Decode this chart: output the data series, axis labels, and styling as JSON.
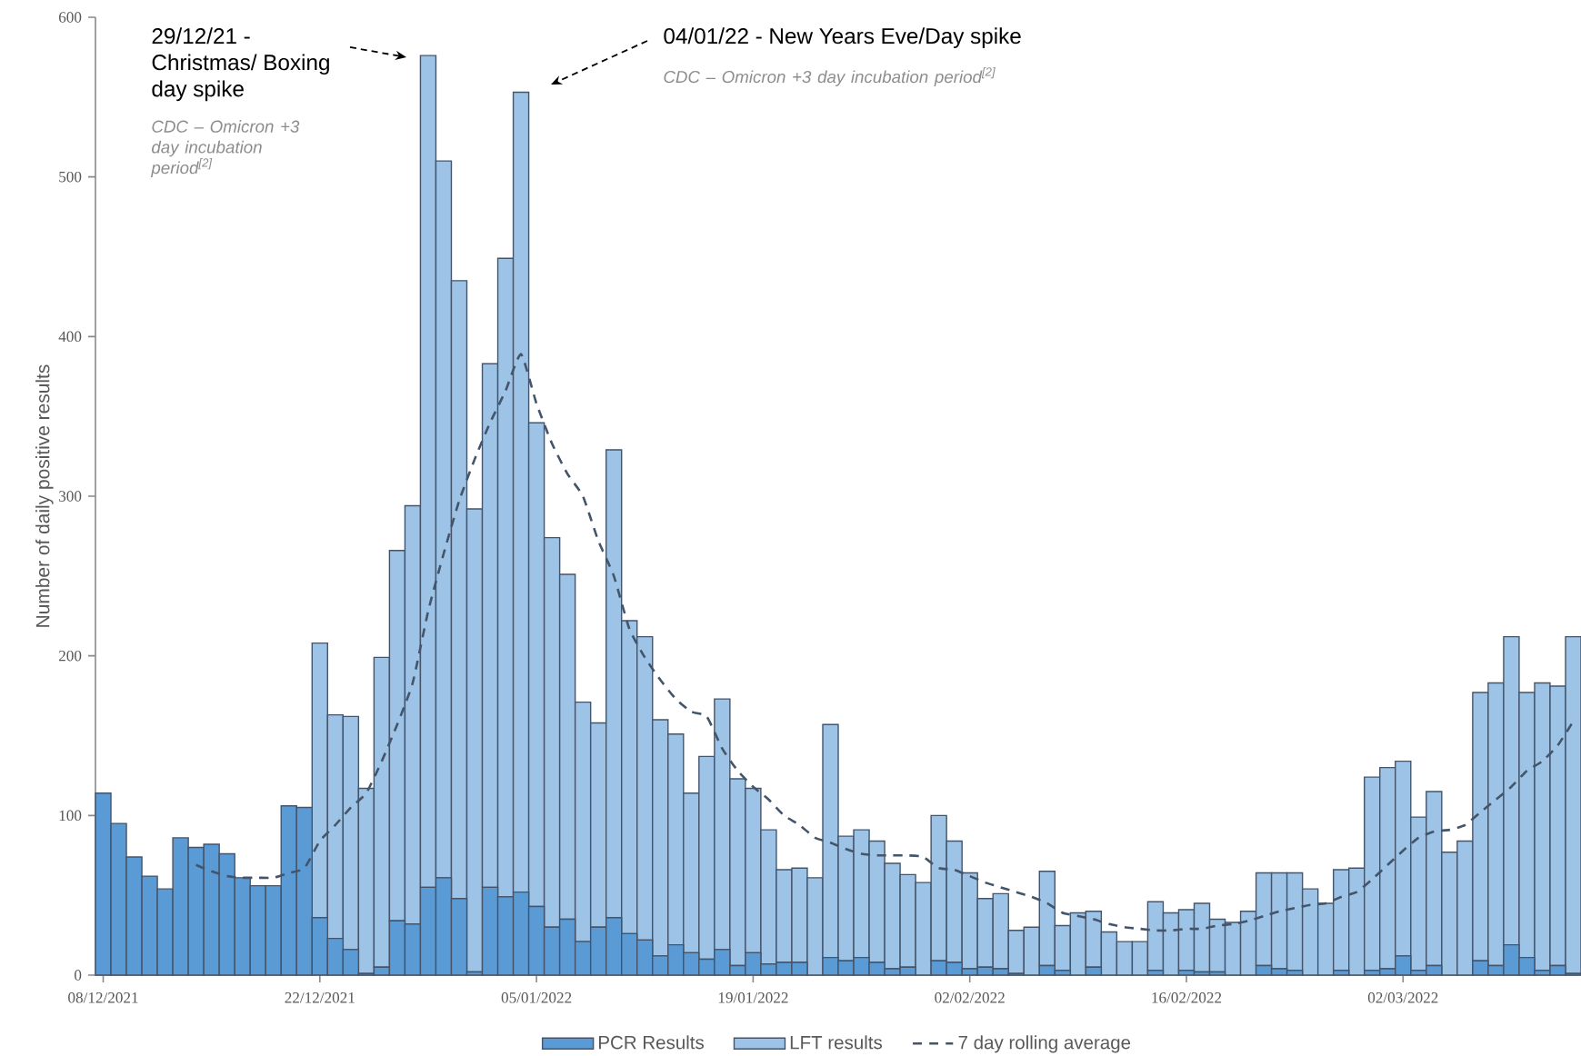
{
  "chart_data": {
    "type": "bar",
    "stacked": true,
    "ylabel": "Number of daily positive results",
    "x": [
      "2021-12-08",
      "2021-12-09",
      "2021-12-10",
      "2021-12-11",
      "2021-12-12",
      "2021-12-13",
      "2021-12-14",
      "2021-12-15",
      "2021-12-16",
      "2021-12-17",
      "2021-12-18",
      "2021-12-19",
      "2021-12-20",
      "2021-12-21",
      "2021-12-22",
      "2021-12-23",
      "2021-12-24",
      "2021-12-25",
      "2021-12-26",
      "2021-12-27",
      "2021-12-28",
      "2021-12-29",
      "2021-12-30",
      "2021-12-31",
      "2022-01-01",
      "2022-01-02",
      "2022-01-03",
      "2022-01-04",
      "2022-01-05",
      "2022-01-06",
      "2022-01-07",
      "2022-01-08",
      "2022-01-09",
      "2022-01-10",
      "2022-01-11",
      "2022-01-12",
      "2022-01-13",
      "2022-01-14",
      "2022-01-15",
      "2022-01-16",
      "2022-01-17",
      "2022-01-18",
      "2022-01-19",
      "2022-01-20",
      "2022-01-21",
      "2022-01-22",
      "2022-01-23",
      "2022-01-24",
      "2022-01-25",
      "2022-01-26",
      "2022-01-27",
      "2022-01-28",
      "2022-01-29",
      "2022-01-30",
      "2022-01-31",
      "2022-02-01",
      "2022-02-02",
      "2022-02-03",
      "2022-02-04",
      "2022-02-05",
      "2022-02-06",
      "2022-02-07",
      "2022-02-08",
      "2022-02-09",
      "2022-02-10",
      "2022-02-11",
      "2022-02-12",
      "2022-02-13",
      "2022-02-14",
      "2022-02-15",
      "2022-02-16",
      "2022-02-17",
      "2022-02-18",
      "2022-02-19",
      "2022-02-20",
      "2022-02-21",
      "2022-02-22",
      "2022-02-23",
      "2022-02-24",
      "2022-02-25",
      "2022-02-26",
      "2022-02-27",
      "2022-02-28",
      "2022-03-01",
      "2022-03-02",
      "2022-03-03",
      "2022-03-04",
      "2022-03-05",
      "2022-03-06",
      "2022-03-07",
      "2022-03-08",
      "2022-03-09",
      "2022-03-10",
      "2022-03-11",
      "2022-03-12",
      "2022-03-13"
    ],
    "xlim": [
      "2021-12-07T12:00",
      "2022-03-13T12:00"
    ],
    "xticks": [
      {
        "value": "2021-12-08",
        "label": "08/12/2021"
      },
      {
        "value": "2021-12-22",
        "label": "22/12/2021"
      },
      {
        "value": "2022-01-05",
        "label": "05/01/2022"
      },
      {
        "value": "2022-01-19",
        "label": "19/01/2022"
      },
      {
        "value": "2022-02-02",
        "label": "02/02/2022"
      },
      {
        "value": "2022-02-16",
        "label": "16/02/2022"
      },
      {
        "value": "2022-03-02",
        "label": "02/03/2022"
      }
    ],
    "ylim": [
      0,
      600
    ],
    "yticks": [
      0,
      100,
      200,
      300,
      400,
      500,
      600
    ],
    "legend": "bottom",
    "series": [
      {
        "name": "PCR Results",
        "type": "bar",
        "color": "#5b9bd5",
        "values": [
          114,
          95,
          74,
          62,
          54,
          86,
          80,
          82,
          76,
          61,
          56,
          56,
          106,
          105,
          36,
          23,
          16,
          1,
          5,
          34,
          32,
          55,
          61,
          48,
          2,
          55,
          49,
          52,
          43,
          30,
          35,
          21,
          30,
          36,
          26,
          22,
          12,
          19,
          14,
          10,
          16,
          6,
          14,
          7,
          8,
          8,
          0,
          11,
          9,
          11,
          8,
          4,
          5,
          0,
          9,
          8,
          4,
          5,
          4,
          1,
          0,
          6,
          3,
          0,
          5,
          0,
          0,
          0,
          3,
          0,
          3,
          2,
          2,
          0,
          0,
          6,
          4,
          3,
          0,
          0,
          3,
          0,
          3,
          4,
          12,
          3,
          6,
          0,
          0,
          9,
          6,
          19,
          11,
          3,
          6,
          1
        ]
      },
      {
        "name": "LFT results",
        "type": "bar",
        "color": "#9dc3e6",
        "values": [
          0,
          0,
          0,
          0,
          0,
          0,
          0,
          0,
          0,
          0,
          0,
          0,
          0,
          0,
          172,
          140,
          146,
          116,
          194,
          232,
          262,
          521,
          449,
          387,
          290,
          328,
          400,
          501,
          303,
          244,
          216,
          150,
          128,
          293,
          196,
          190,
          148,
          132,
          100,
          127,
          157,
          117,
          103,
          84,
          58,
          59,
          61,
          146,
          78,
          80,
          76,
          66,
          58,
          58,
          91,
          76,
          60,
          43,
          47,
          27,
          30,
          59,
          28,
          39,
          35,
          27,
          21,
          21,
          43,
          39,
          38,
          43,
          33,
          33,
          40,
          58,
          60,
          61,
          54,
          45,
          63,
          67,
          121,
          126,
          122,
          96,
          109,
          77,
          84,
          168,
          177,
          193,
          166,
          180,
          175,
          211
        ]
      },
      {
        "name": "7 day rolling average",
        "type": "line",
        "line_style": "dashed",
        "color": "#44546a",
        "values": [
          null,
          null,
          null,
          null,
          null,
          null,
          69,
          65,
          62,
          61,
          61,
          61,
          64,
          67,
          84,
          94,
          105,
          114,
          134,
          157,
          183,
          228,
          264,
          297,
          323,
          346,
          366,
          389,
          358,
          333,
          314,
          300,
          272,
          250,
          217,
          199,
          185,
          173,
          165,
          162,
          142,
          128,
          118,
          110,
          100,
          94,
          86,
          83,
          79,
          76,
          75,
          75,
          75,
          74,
          67,
          66,
          62,
          58,
          55,
          52,
          49,
          45,
          39,
          37,
          35,
          32,
          30,
          29,
          28,
          28,
          29,
          29,
          31,
          32,
          34,
          37,
          40,
          42,
          44,
          45,
          49,
          52,
          60,
          69,
          78,
          86,
          90,
          91,
          94,
          102,
          110,
          118,
          128,
          134,
          144,
          159
        ]
      }
    ],
    "annotations": [
      "29/12/21 - Christmas/ Boxing day spike",
      "CDC – Omicron +3 day incubation period$^{[2]}$",
      "04/01/22 - New Years Eve/Day spike",
      "CDC – Omicron +3 day incubation period$^{[2]}$"
    ]
  }
}
